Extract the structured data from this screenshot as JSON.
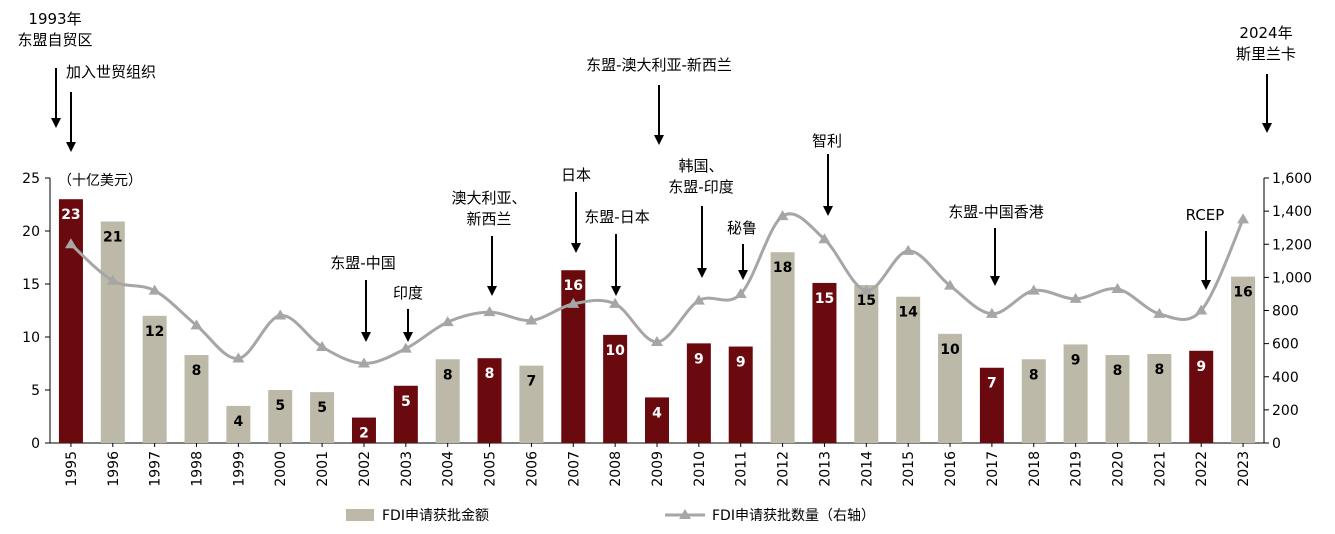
{
  "chart_data": {
    "type": "bar",
    "unit_label": "（十亿美元）",
    "categories": [
      "1995",
      "1996",
      "1997",
      "1998",
      "1999",
      "2000",
      "2001",
      "2002",
      "2003",
      "2004",
      "2005",
      "2006",
      "2007",
      "2008",
      "2009",
      "2010",
      "2011",
      "2012",
      "2013",
      "2014",
      "2015",
      "2016",
      "2017",
      "2018",
      "2019",
      "2020",
      "2021",
      "2022",
      "2023"
    ],
    "series": [
      {
        "name": "FDI申请获批金额",
        "type": "bar",
        "axis": "left",
        "values": [
          23,
          20.9,
          12,
          8.3,
          3.5,
          5,
          4.8,
          2.4,
          5.4,
          7.9,
          8,
          7.3,
          16.3,
          10.2,
          4.3,
          9.4,
          9.1,
          18,
          15.1,
          14.9,
          13.8,
          10.3,
          7.1,
          7.9,
          9.3,
          8.3,
          8.4,
          8.7,
          15.7
        ],
        "labels": [
          "23",
          "21",
          "12",
          "8",
          "4",
          "5",
          "5",
          "2",
          "5",
          "8",
          "8",
          "7",
          "16",
          "10",
          "4",
          "9",
          "9",
          "18",
          "15",
          "15",
          "14",
          "10",
          "7",
          "8",
          "9",
          "8",
          "8",
          "9",
          "16"
        ],
        "highlighted": [
          true,
          false,
          false,
          false,
          false,
          false,
          false,
          true,
          true,
          false,
          true,
          false,
          true,
          true,
          true,
          true,
          true,
          false,
          true,
          false,
          false,
          false,
          true,
          false,
          false,
          false,
          false,
          true,
          false
        ]
      },
      {
        "name": "FDI申请获批数量（右轴）",
        "type": "line",
        "axis": "right",
        "values": [
          1200,
          980,
          920,
          710,
          510,
          770,
          580,
          480,
          570,
          730,
          790,
          740,
          840,
          840,
          610,
          860,
          900,
          1370,
          1230,
          920,
          1160,
          950,
          780,
          920,
          870,
          930,
          780,
          800,
          1350
        ]
      }
    ],
    "ylim_left": [
      0,
      25
    ],
    "yticks_left": [
      "0",
      "5",
      "10",
      "15",
      "20",
      "25"
    ],
    "ylim_right": [
      0,
      1600
    ],
    "yticks_right": [
      "0",
      "200",
      "400",
      "600",
      "800",
      "1,000",
      "1,200",
      "1,400",
      "1,600"
    ],
    "colors": {
      "bar_default": "#bdb9a8",
      "bar_highlight": "#6b0a0e",
      "line": "#a6a6a6",
      "axis": "#000000",
      "label_on_highlight": "#ffffff",
      "label_on_default": "#000000"
    },
    "annotations": [
      {
        "category": "1995",
        "lines": [
          "1993年",
          "东盟自贸区"
        ],
        "arrow": true
      },
      {
        "category": "1995",
        "lines": [
          "加入世贸组织"
        ],
        "arrow": true
      },
      {
        "category": "2002",
        "lines": [
          "东盟-中国"
        ],
        "arrow": true
      },
      {
        "category": "2003",
        "lines": [
          "印度"
        ],
        "arrow": true
      },
      {
        "category": "2005",
        "lines": [
          "澳大利亚、",
          "新西兰"
        ],
        "arrow": true
      },
      {
        "category": "2007",
        "lines": [
          "日本"
        ],
        "arrow": true
      },
      {
        "category": "2008",
        "lines": [
          "东盟-日本"
        ],
        "arrow": true
      },
      {
        "category": "2009",
        "lines": [
          "东盟-澳大利亚-新西兰"
        ],
        "arrow": true
      },
      {
        "category": "2010",
        "lines": [
          "韩国、",
          "东盟-印度"
        ],
        "arrow": true
      },
      {
        "category": "2011",
        "lines": [
          "秘鲁"
        ],
        "arrow": true
      },
      {
        "category": "2013",
        "lines": [
          "智利"
        ],
        "arrow": true
      },
      {
        "category": "2017",
        "lines": [
          "东盟-中国香港"
        ],
        "arrow": true
      },
      {
        "category": "2022",
        "lines": [
          "RCEP"
        ],
        "arrow": true
      },
      {
        "category": "2023",
        "lines": [
          "2024年",
          "斯里兰卡"
        ],
        "arrow": true
      }
    ],
    "legend": {
      "position": "bottom",
      "items": [
        "FDI申请获批金额",
        "FDI申请获批数量（右轴）"
      ]
    }
  }
}
